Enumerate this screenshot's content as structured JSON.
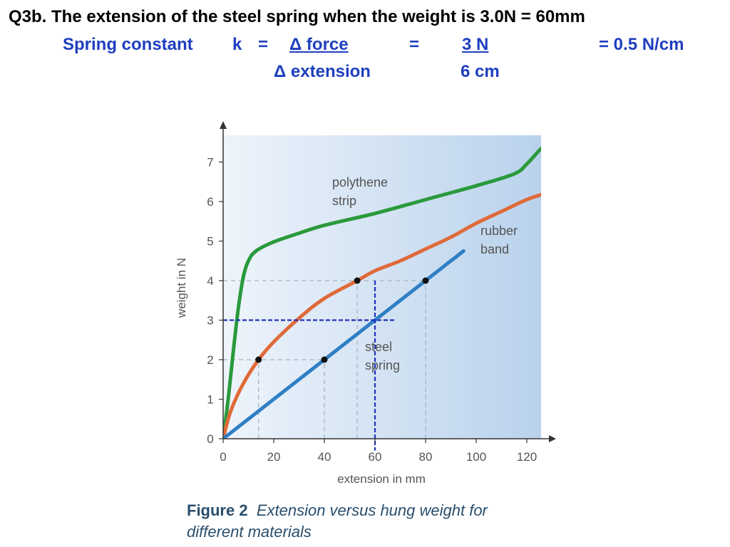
{
  "header": {
    "line1": "Q3b.  The extension of the steel spring when the weight is 3.0N  =  60mm",
    "spring_constant_label": "Spring constant",
    "k": "k",
    "eq1": "=",
    "delta_force": "Δ force",
    "eq2": "=",
    "force_value": "3 N",
    "result": "=  0.5 N/cm",
    "delta_extension": "Δ  extension",
    "extension_value": "6 cm"
  },
  "caption": {
    "figure_label": "Figure 2",
    "text_line1": "Extension versus hung weight for",
    "text_line2": "different materials"
  },
  "colors": {
    "polythene": "#2a9a3c",
    "rubber": "#e06a3a",
    "steel": "#2f7fc4",
    "guide": "#2233bb",
    "bg_light": "#eef4fb",
    "bg_dark": "#b9d2ec"
  },
  "chart_data": {
    "type": "line",
    "title": "",
    "xlabel": "extension in mm",
    "ylabel": "weight in N",
    "xlim": [
      0,
      130
    ],
    "ylim": [
      0,
      7.5
    ],
    "xticks": [
      0,
      20,
      40,
      60,
      80,
      100,
      120
    ],
    "yticks": [
      0,
      1,
      2,
      3,
      4,
      5,
      6,
      7
    ],
    "series": [
      {
        "name": "polythene strip",
        "label_lines": [
          "polythene",
          "strip"
        ],
        "points": [
          [
            0,
            0
          ],
          [
            2,
            1
          ],
          [
            4,
            2.2
          ],
          [
            6,
            3.3
          ],
          [
            8,
            4.1
          ],
          [
            10,
            4.5
          ],
          [
            13,
            4.75
          ],
          [
            20,
            4.98
          ],
          [
            30,
            5.2
          ],
          [
            40,
            5.4
          ],
          [
            60,
            5.7
          ],
          [
            80,
            6.05
          ],
          [
            100,
            6.4
          ],
          [
            115,
            6.7
          ],
          [
            120,
            6.95
          ],
          [
            125,
            7.3
          ],
          [
            127,
            7.4
          ]
        ]
      },
      {
        "name": "rubber band",
        "label_lines": [
          "rubber",
          "band"
        ],
        "points": [
          [
            0,
            0
          ],
          [
            3,
            0.7
          ],
          [
            8,
            1.4
          ],
          [
            14,
            2
          ],
          [
            20,
            2.45
          ],
          [
            30,
            3.05
          ],
          [
            40,
            3.55
          ],
          [
            53,
            4
          ],
          [
            60,
            4.25
          ],
          [
            70,
            4.5
          ],
          [
            80,
            4.8
          ],
          [
            90,
            5.1
          ],
          [
            100,
            5.45
          ],
          [
            110,
            5.75
          ],
          [
            120,
            6.05
          ],
          [
            127,
            6.2
          ]
        ]
      },
      {
        "name": "steel spring",
        "label_lines": [
          "steel",
          "spring"
        ],
        "points": [
          [
            0,
            0
          ],
          [
            95,
            4.75
          ]
        ]
      }
    ],
    "marked_points": [
      [
        14,
        2
      ],
      [
        40,
        2
      ],
      [
        53,
        4
      ],
      [
        80,
        4
      ]
    ],
    "dashed_guides": [
      {
        "from": [
          0,
          4
        ],
        "to": [
          80,
          4
        ]
      },
      {
        "from": [
          0,
          2
        ],
        "to": [
          40,
          2
        ]
      },
      {
        "from": [
          14,
          0
        ],
        "to": [
          14,
          2
        ]
      },
      {
        "from": [
          40,
          0
        ],
        "to": [
          40,
          2
        ]
      },
      {
        "from": [
          53,
          0
        ],
        "to": [
          53,
          4
        ]
      },
      {
        "from": [
          80,
          0
        ],
        "to": [
          80,
          4
        ]
      }
    ],
    "reading_guides": [
      {
        "from": [
          0,
          3
        ],
        "to": [
          68,
          3
        ]
      },
      {
        "from": [
          60,
          4
        ],
        "to": [
          60,
          -0.3
        ]
      }
    ],
    "annotations": [
      "polythene strip",
      "rubber band",
      "steel spring"
    ]
  }
}
